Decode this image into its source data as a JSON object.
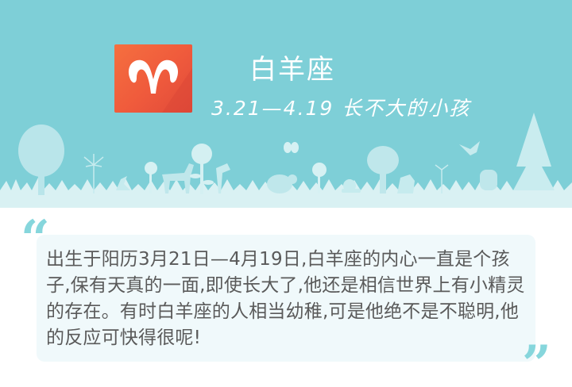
{
  "header": {
    "sign_icon": "aries-ram-icon",
    "sign_name": "白羊座",
    "date_range_and_tagline": "3.21—4.19   长不大的小孩"
  },
  "description": {
    "text": "出生于阳历3月21日—4月19日,白羊座的内心一直是个孩子,保有天真的一面,即使长大了,他还是相信世界上有小精灵的存在。有时白羊座的人相当幼稚,可是他绝不是不聪明,他的反应可快得很呢!"
  },
  "colors": {
    "banner_bg": "#7ecfd7",
    "logo_bg": "#ef5a3c",
    "quote_mark": "#86d6dc",
    "text": "#5a5a5a"
  }
}
